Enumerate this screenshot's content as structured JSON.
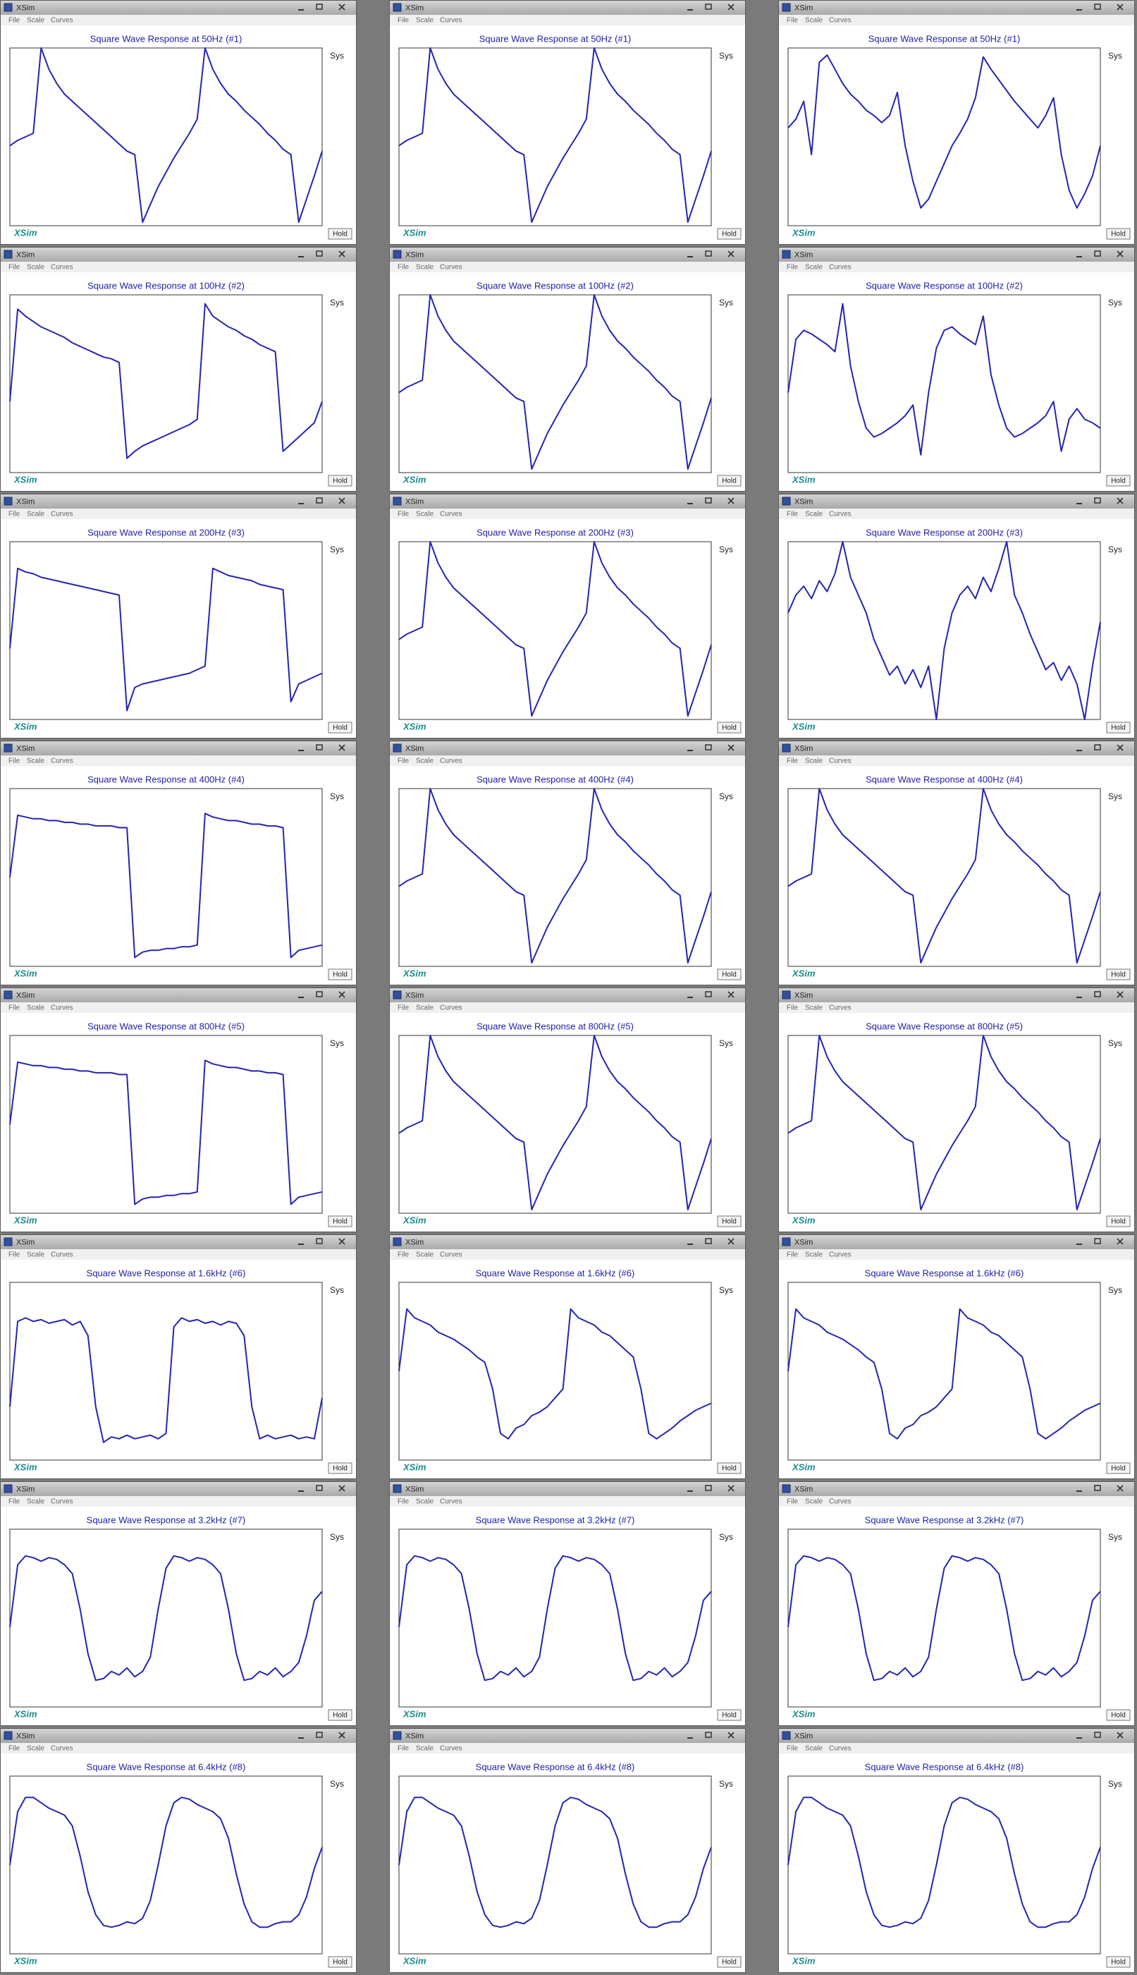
{
  "app_title": "XSim",
  "menu": [
    "File",
    "Scale",
    "Curves"
  ],
  "legend": "Sys",
  "logo": "XSim",
  "button": "Hold",
  "ylim": [
    0,
    100
  ],
  "line_color": "#2424b4",
  "rows": [
    {
      "title": "Square Wave Response at 50Hz (#1)",
      "curves": [
        [
          45,
          48,
          50,
          52,
          100,
          88,
          80,
          74,
          70,
          66,
          62,
          58,
          54,
          50,
          46,
          42,
          40,
          2,
          12,
          22,
          30,
          38,
          45,
          52,
          60,
          100,
          88,
          80,
          74,
          70,
          65,
          61,
          57,
          52,
          48,
          43,
          40,
          2,
          15,
          28,
          42
        ],
        [
          45,
          48,
          50,
          52,
          100,
          88,
          80,
          74,
          70,
          66,
          62,
          58,
          54,
          50,
          46,
          42,
          40,
          2,
          12,
          22,
          30,
          38,
          45,
          52,
          60,
          100,
          88,
          80,
          74,
          70,
          65,
          61,
          57,
          52,
          48,
          43,
          40,
          2,
          15,
          28,
          42
        ],
        [
          55,
          60,
          70,
          40,
          92,
          96,
          88,
          80,
          74,
          70,
          65,
          62,
          58,
          62,
          75,
          45,
          25,
          10,
          15,
          25,
          35,
          45,
          52,
          60,
          72,
          95,
          88,
          82,
          76,
          70,
          65,
          60,
          55,
          62,
          72,
          40,
          20,
          10,
          18,
          28,
          45
        ]
      ]
    },
    {
      "title": "Square Wave Response at 100Hz (#2)",
      "curves": [
        [
          40,
          92,
          88,
          85,
          82,
          80,
          78,
          76,
          73,
          71,
          69,
          67,
          65,
          64,
          62,
          8,
          12,
          15,
          17,
          19,
          21,
          23,
          25,
          27,
          30,
          95,
          88,
          85,
          82,
          80,
          77,
          75,
          72,
          70,
          68,
          12,
          16,
          20,
          24,
          28,
          40
        ],
        [
          45,
          48,
          50,
          52,
          100,
          88,
          80,
          74,
          70,
          66,
          62,
          58,
          54,
          50,
          46,
          42,
          40,
          2,
          12,
          22,
          30,
          38,
          45,
          52,
          60,
          100,
          88,
          80,
          74,
          70,
          65,
          61,
          57,
          52,
          48,
          43,
          40,
          2,
          15,
          28,
          42
        ],
        [
          45,
          75,
          80,
          78,
          75,
          72,
          68,
          95,
          60,
          40,
          25,
          20,
          22,
          25,
          28,
          32,
          38,
          10,
          45,
          70,
          80,
          82,
          78,
          75,
          72,
          88,
          55,
          38,
          25,
          20,
          22,
          25,
          28,
          32,
          40,
          12,
          30,
          36,
          30,
          28,
          25
        ]
      ]
    },
    {
      "title": "Square Wave Response at 200Hz (#3)",
      "curves": [
        [
          40,
          85,
          83,
          82,
          80,
          79,
          78,
          77,
          76,
          75,
          74,
          73,
          72,
          71,
          70,
          5,
          18,
          20,
          21,
          22,
          23,
          24,
          25,
          26,
          28,
          30,
          85,
          83,
          81,
          80,
          79,
          78,
          76,
          75,
          74,
          73,
          10,
          20,
          22,
          24,
          26
        ],
        [
          45,
          48,
          50,
          52,
          100,
          88,
          80,
          74,
          70,
          66,
          62,
          58,
          54,
          50,
          46,
          42,
          40,
          2,
          12,
          22,
          30,
          38,
          45,
          52,
          60,
          100,
          88,
          80,
          74,
          70,
          65,
          61,
          57,
          52,
          48,
          43,
          40,
          2,
          15,
          28,
          42
        ],
        [
          60,
          70,
          75,
          68,
          78,
          72,
          82,
          100,
          80,
          70,
          60,
          45,
          35,
          25,
          30,
          20,
          28,
          18,
          30,
          0,
          40,
          60,
          70,
          75,
          68,
          80,
          72,
          85,
          100,
          70,
          60,
          48,
          38,
          28,
          32,
          22,
          30,
          20,
          0,
          30,
          55
        ]
      ]
    },
    {
      "title": "Square Wave Response at 400Hz (#4)",
      "curves": [
        [
          50,
          85,
          84,
          83,
          83,
          82,
          82,
          81,
          81,
          80,
          80,
          79,
          79,
          79,
          78,
          78,
          5,
          8,
          9,
          9,
          10,
          10,
          11,
          11,
          12,
          86,
          84,
          83,
          82,
          82,
          81,
          80,
          80,
          79,
          79,
          78,
          5,
          9,
          10,
          11,
          12
        ],
        [
          45,
          48,
          50,
          52,
          100,
          88,
          80,
          74,
          70,
          66,
          62,
          58,
          54,
          50,
          46,
          42,
          40,
          2,
          12,
          22,
          30,
          38,
          45,
          52,
          60,
          100,
          88,
          80,
          74,
          70,
          65,
          61,
          57,
          52,
          48,
          43,
          40,
          2,
          15,
          28,
          42
        ],
        [
          45,
          48,
          50,
          52,
          100,
          88,
          80,
          74,
          70,
          66,
          62,
          58,
          54,
          50,
          46,
          42,
          40,
          2,
          12,
          22,
          30,
          38,
          45,
          52,
          60,
          100,
          88,
          80,
          74,
          70,
          65,
          61,
          57,
          52,
          48,
          43,
          40,
          2,
          15,
          28,
          42
        ]
      ]
    },
    {
      "title": "Square Wave Response at 800Hz (#5)",
      "curves": [
        [
          50,
          85,
          84,
          83,
          83,
          82,
          82,
          81,
          81,
          80,
          80,
          79,
          79,
          79,
          78,
          78,
          5,
          8,
          9,
          9,
          10,
          10,
          11,
          11,
          12,
          86,
          84,
          83,
          82,
          82,
          81,
          80,
          80,
          79,
          79,
          78,
          5,
          9,
          10,
          11,
          12
        ],
        [
          45,
          48,
          50,
          52,
          100,
          88,
          80,
          74,
          70,
          66,
          62,
          58,
          54,
          50,
          46,
          42,
          40,
          2,
          12,
          22,
          30,
          38,
          45,
          52,
          60,
          100,
          88,
          80,
          74,
          70,
          65,
          61,
          57,
          52,
          48,
          43,
          40,
          2,
          15,
          28,
          42
        ],
        [
          45,
          48,
          50,
          52,
          100,
          88,
          80,
          74,
          70,
          66,
          62,
          58,
          54,
          50,
          46,
          42,
          40,
          2,
          12,
          22,
          30,
          38,
          45,
          52,
          60,
          100,
          88,
          80,
          74,
          70,
          65,
          61,
          57,
          52,
          48,
          43,
          40,
          2,
          15,
          28,
          42
        ]
      ]
    },
    {
      "title": "Square Wave Response at 1.6kHz (#6)",
      "curves": [
        [
          30,
          78,
          80,
          78,
          79,
          77,
          78,
          79,
          76,
          78,
          70,
          30,
          10,
          13,
          12,
          14,
          12,
          13,
          14,
          12,
          15,
          75,
          80,
          78,
          79,
          77,
          78,
          76,
          78,
          77,
          70,
          30,
          12,
          14,
          12,
          13,
          14,
          12,
          13,
          12,
          35
        ],
        [
          50,
          85,
          80,
          78,
          76,
          72,
          70,
          68,
          65,
          62,
          58,
          55,
          40,
          15,
          12,
          18,
          20,
          25,
          27,
          30,
          35,
          40,
          85,
          80,
          78,
          76,
          72,
          70,
          66,
          62,
          58,
          40,
          15,
          12,
          15,
          18,
          22,
          25,
          28,
          30,
          32
        ],
        [
          50,
          85,
          80,
          78,
          76,
          72,
          70,
          68,
          65,
          62,
          58,
          55,
          40,
          15,
          12,
          18,
          20,
          25,
          27,
          30,
          35,
          40,
          85,
          80,
          78,
          76,
          72,
          70,
          66,
          62,
          58,
          40,
          15,
          12,
          15,
          18,
          22,
          25,
          28,
          30,
          32
        ]
      ]
    },
    {
      "title": "Square Wave Response at 3.2kHz (#7)",
      "curves": [
        [
          45,
          80,
          85,
          84,
          82,
          84,
          83,
          80,
          75,
          55,
          30,
          15,
          16,
          20,
          18,
          22,
          17,
          20,
          28,
          55,
          78,
          85,
          84,
          82,
          84,
          83,
          80,
          75,
          55,
          30,
          15,
          16,
          20,
          18,
          22,
          17,
          20,
          25,
          40,
          60,
          65
        ],
        [
          45,
          80,
          85,
          84,
          82,
          84,
          83,
          80,
          75,
          55,
          30,
          15,
          16,
          20,
          18,
          22,
          17,
          20,
          28,
          55,
          78,
          85,
          84,
          82,
          84,
          83,
          80,
          75,
          55,
          30,
          15,
          16,
          20,
          18,
          22,
          17,
          20,
          25,
          40,
          60,
          65
        ],
        [
          45,
          80,
          85,
          84,
          82,
          84,
          83,
          80,
          75,
          55,
          30,
          15,
          16,
          20,
          18,
          22,
          17,
          20,
          28,
          55,
          78,
          85,
          84,
          82,
          84,
          83,
          80,
          75,
          55,
          30,
          15,
          16,
          20,
          18,
          22,
          17,
          20,
          25,
          40,
          60,
          65
        ]
      ]
    },
    {
      "title": "Square Wave Response at 6.4kHz (#8)",
      "curves": [
        [
          50,
          80,
          88,
          88,
          85,
          82,
          80,
          78,
          72,
          55,
          35,
          22,
          16,
          15,
          16,
          18,
          17,
          20,
          30,
          50,
          72,
          85,
          88,
          87,
          84,
          82,
          80,
          76,
          65,
          45,
          28,
          18,
          15,
          15,
          17,
          18,
          18,
          22,
          32,
          48,
          60
        ],
        [
          50,
          80,
          88,
          88,
          85,
          82,
          80,
          78,
          72,
          55,
          35,
          22,
          16,
          15,
          16,
          18,
          17,
          20,
          30,
          50,
          72,
          85,
          88,
          87,
          84,
          82,
          80,
          76,
          65,
          45,
          28,
          18,
          15,
          15,
          17,
          18,
          18,
          22,
          32,
          48,
          60
        ],
        [
          50,
          80,
          88,
          88,
          85,
          82,
          80,
          78,
          72,
          55,
          35,
          22,
          16,
          15,
          16,
          18,
          17,
          20,
          30,
          50,
          72,
          85,
          88,
          87,
          84,
          82,
          80,
          76,
          65,
          45,
          28,
          18,
          15,
          15,
          17,
          18,
          18,
          22,
          32,
          48,
          60
        ]
      ]
    }
  ]
}
